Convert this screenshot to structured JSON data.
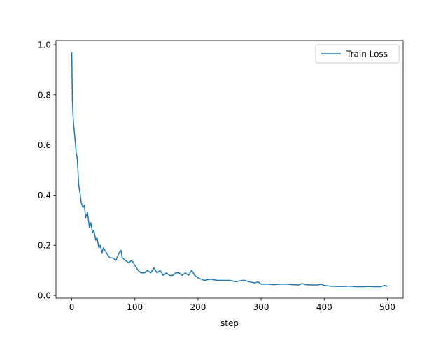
{
  "chart_data": {
    "type": "line",
    "xlabel": "step",
    "x": [
      0,
      1,
      2,
      3,
      5,
      7,
      9,
      11,
      13,
      15,
      18,
      20,
      22,
      25,
      28,
      30,
      33,
      35,
      38,
      40,
      43,
      45,
      48,
      50,
      55,
      60,
      65,
      70,
      75,
      78,
      80,
      85,
      90,
      95,
      100,
      105,
      110,
      115,
      120,
      125,
      130,
      135,
      140,
      145,
      150,
      155,
      160,
      165,
      170,
      175,
      180,
      185,
      190,
      195,
      200,
      210,
      220,
      230,
      240,
      250,
      260,
      270,
      275,
      280,
      290,
      295,
      300,
      310,
      320,
      330,
      340,
      350,
      360,
      365,
      370,
      380,
      390,
      395,
      400,
      410,
      420,
      430,
      440,
      450,
      460,
      470,
      480,
      490,
      495,
      500
    ],
    "series": [
      {
        "name": "Train Loss",
        "color": "#1f77b4",
        "values": [
          0.97,
          0.78,
          0.72,
          0.68,
          0.63,
          0.57,
          0.54,
          0.44,
          0.41,
          0.37,
          0.35,
          0.36,
          0.31,
          0.33,
          0.27,
          0.29,
          0.25,
          0.26,
          0.22,
          0.23,
          0.19,
          0.2,
          0.17,
          0.19,
          0.17,
          0.15,
          0.15,
          0.14,
          0.17,
          0.18,
          0.15,
          0.14,
          0.13,
          0.14,
          0.12,
          0.1,
          0.09,
          0.09,
          0.1,
          0.09,
          0.11,
          0.09,
          0.1,
          0.08,
          0.09,
          0.08,
          0.08,
          0.09,
          0.09,
          0.08,
          0.09,
          0.08,
          0.1,
          0.08,
          0.07,
          0.06,
          0.065,
          0.06,
          0.06,
          0.06,
          0.055,
          0.06,
          0.06,
          0.055,
          0.05,
          0.055,
          0.045,
          0.045,
          0.043,
          0.045,
          0.045,
          0.043,
          0.042,
          0.048,
          0.043,
          0.042,
          0.042,
          0.045,
          0.04,
          0.037,
          0.036,
          0.036,
          0.037,
          0.035,
          0.035,
          0.036,
          0.035,
          0.035,
          0.04,
          0.037
        ]
      }
    ],
    "xlim": [
      -25,
      525
    ],
    "ylim": [
      -0.011,
      1.0167
    ],
    "xticks": [
      0,
      100,
      200,
      300,
      400,
      500
    ],
    "yticks": [
      {
        "value": 0,
        "label": "0.0"
      },
      {
        "value": 0.2,
        "label": "0.2"
      },
      {
        "value": 0.4,
        "label": "0.4"
      },
      {
        "value": 0.6,
        "label": "0.6"
      },
      {
        "value": 0.8,
        "label": "0.8"
      },
      {
        "value": 1.0,
        "label": "1.0"
      }
    ],
    "legend": "upper right"
  }
}
